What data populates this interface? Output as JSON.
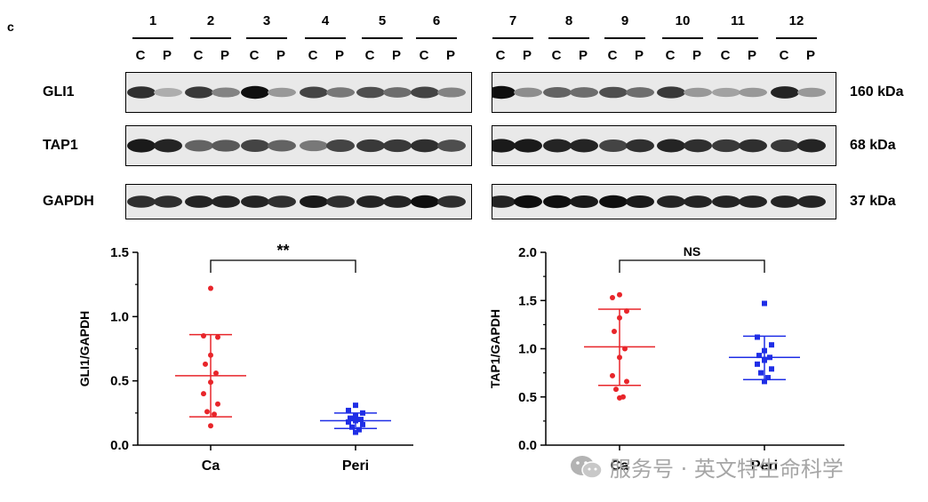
{
  "panel_label": "c",
  "lanes": [
    "1",
    "2",
    "3",
    "4",
    "5",
    "6",
    "7",
    "8",
    "9",
    "10",
    "11",
    "12"
  ],
  "lane_sub": [
    "C",
    "P"
  ],
  "blots": [
    {
      "label": "GLI1",
      "kda": "160 kDa"
    },
    {
      "label": "TAP1",
      "kda": "68 kDa"
    },
    {
      "label": "GAPDH",
      "kda": "37 kDa"
    }
  ],
  "watermark": "服务号 · 英文特生命科学",
  "chart_data": [
    {
      "type": "scatter",
      "ylabel": "GLI1/GAPDH",
      "categories": [
        "Ca",
        "Peri"
      ],
      "ylim": [
        0,
        1.5
      ],
      "yticks": [
        "0.0",
        "0.5",
        "1.0",
        "1.5"
      ],
      "significance": "**",
      "series": [
        {
          "color": "#e8252a",
          "marker": "circle",
          "mean": 0.54,
          "sd_low": 0.22,
          "sd_high": 0.86,
          "values": [
            1.22,
            0.85,
            0.84,
            0.7,
            0.63,
            0.56,
            0.49,
            0.4,
            0.32,
            0.26,
            0.24,
            0.15
          ]
        },
        {
          "color": "#1f2ee6",
          "marker": "square",
          "mean": 0.19,
          "sd_low": 0.13,
          "sd_high": 0.25,
          "values": [
            0.31,
            0.27,
            0.25,
            0.23,
            0.21,
            0.2,
            0.19,
            0.18,
            0.16,
            0.14,
            0.12,
            0.1
          ]
        }
      ]
    },
    {
      "type": "scatter",
      "ylabel": "TAP1/GAPDH",
      "categories": [
        "Ca",
        "Peri"
      ],
      "ylim": [
        0,
        2.0
      ],
      "yticks": [
        "0.0",
        "0.5",
        "1.0",
        "1.5",
        "2.0"
      ],
      "significance": "NS",
      "series": [
        {
          "color": "#e8252a",
          "marker": "circle",
          "mean": 1.02,
          "sd_low": 0.62,
          "sd_high": 1.41,
          "values": [
            1.56,
            1.53,
            1.39,
            1.32,
            1.18,
            1.0,
            0.91,
            0.72,
            0.66,
            0.58,
            0.5,
            0.49
          ]
        },
        {
          "color": "#1f2ee6",
          "marker": "square",
          "mean": 0.91,
          "sd_low": 0.68,
          "sd_high": 1.13,
          "values": [
            1.47,
            1.12,
            1.04,
            0.98,
            0.93,
            0.91,
            0.88,
            0.84,
            0.79,
            0.75,
            0.7,
            0.66
          ]
        }
      ]
    }
  ]
}
